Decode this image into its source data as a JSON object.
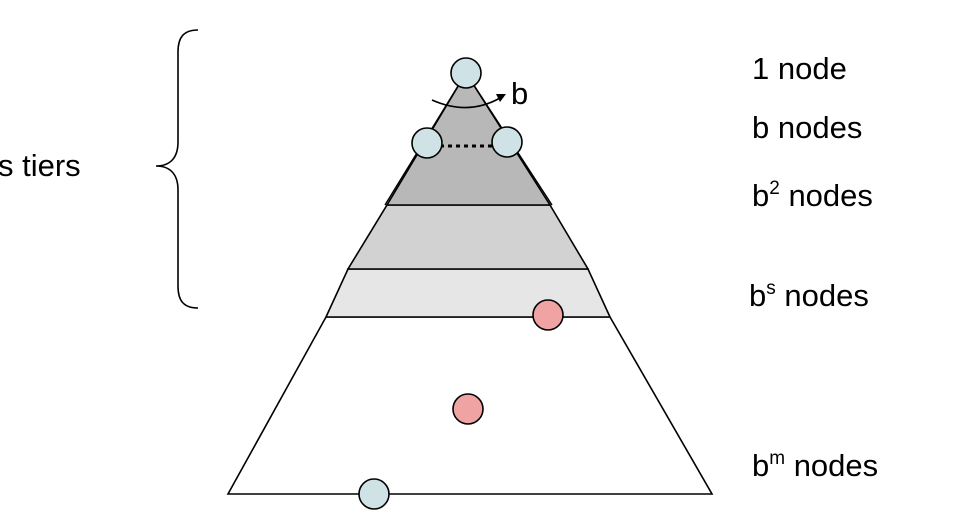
{
  "colors": {
    "tier_top": "#b8b8b8",
    "tier_mid": "#d2d2d2",
    "tier_s": "#e6e6e6",
    "tier_bottom": "#ffffff",
    "outline": "#000000",
    "node_blue": "#cfe3e6",
    "node_red": "#f0a3a3"
  },
  "brace_label": "s tiers",
  "branch_label": "b",
  "levels": [
    {
      "base": "1",
      "sup": "",
      "suffix": " node"
    },
    {
      "base": "b",
      "sup": "",
      "suffix": " nodes"
    },
    {
      "base": "b",
      "sup": "2",
      "suffix": " nodes"
    },
    {
      "base": "b",
      "sup": "s",
      "suffix": " nodes"
    },
    {
      "base": "b",
      "sup": "m",
      "suffix": " nodes"
    }
  ],
  "nodes": [
    {
      "name": "root-node",
      "color": "node_blue"
    },
    {
      "name": "left-child-node",
      "color": "node_blue"
    },
    {
      "name": "right-child-node",
      "color": "node_blue"
    },
    {
      "name": "tier-s-goal-node",
      "color": "node_red"
    },
    {
      "name": "deep-goal-node",
      "color": "node_red"
    },
    {
      "name": "leaf-node",
      "color": "node_blue"
    }
  ]
}
